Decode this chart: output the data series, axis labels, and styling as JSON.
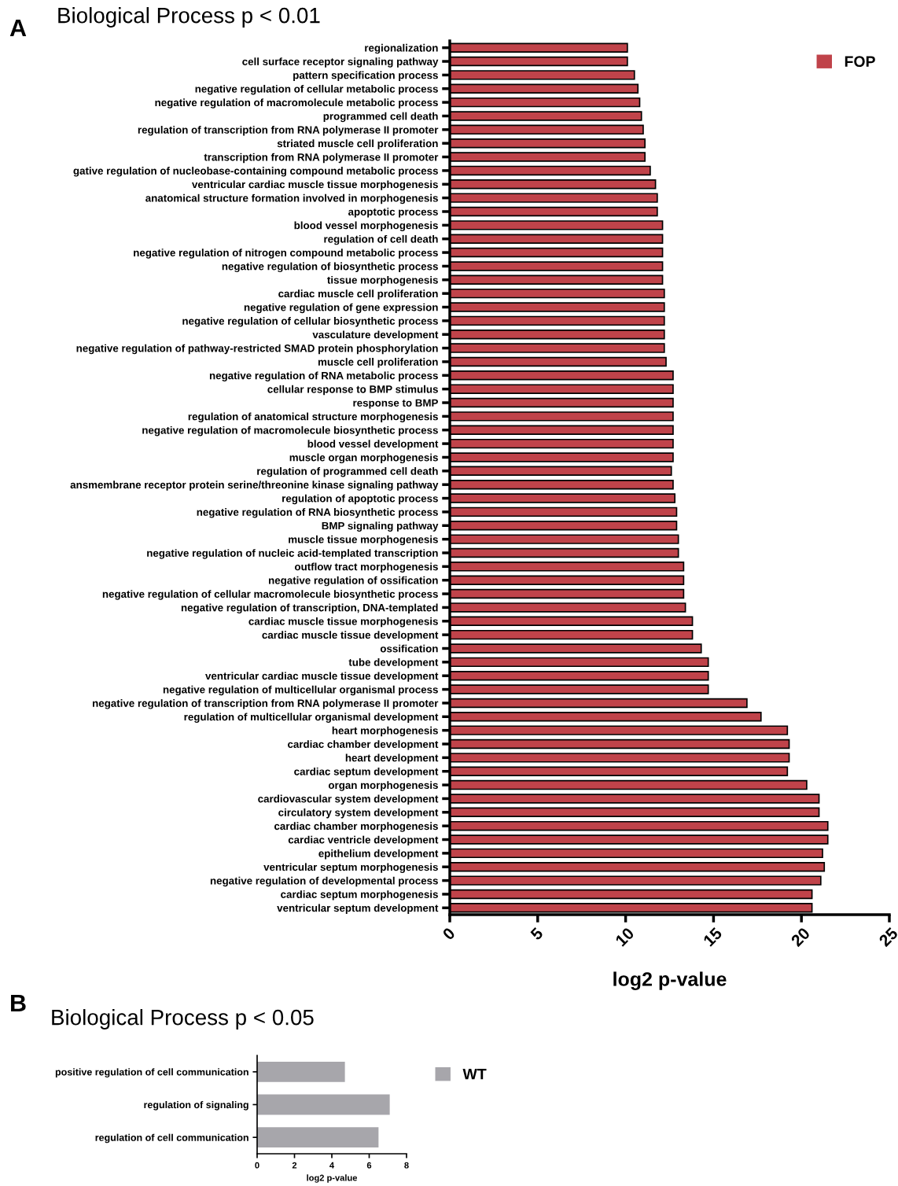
{
  "chart_data": [
    {
      "type": "bar",
      "orientation": "horizontal",
      "title": "Biological Process p < 0.01",
      "xlabel": "log2 p-value",
      "annotations": [
        "A"
      ],
      "legend": "top right",
      "grid": false,
      "categories": [
        "regionalization",
        "cell surface receptor signaling pathway",
        "pattern specification process",
        "negative regulation of cellular metabolic process",
        "negative regulation of macromolecule metabolic process",
        "programmed cell death",
        "regulation of transcription from RNA polymerase II promoter",
        "striated muscle cell proliferation",
        "transcription from RNA polymerase II promoter",
        "gative regulation of nucleobase-containing compound metabolic process",
        "ventricular cardiac muscle tissue morphogenesis",
        "anatomical structure formation involved in morphogenesis",
        "apoptotic process",
        "blood vessel morphogenesis",
        "regulation of cell death",
        "negative regulation of nitrogen compound metabolic process",
        "negative regulation of biosynthetic process",
        "tissue morphogenesis",
        "cardiac muscle cell proliferation",
        "negative regulation of gene expression",
        "negative regulation of cellular biosynthetic process",
        "vasculature development",
        "negative regulation of pathway-restricted SMAD protein phosphorylation",
        "muscle cell proliferation",
        "negative regulation of RNA metabolic process",
        "cellular response to BMP stimulus",
        "response to BMP",
        "regulation of anatomical structure morphogenesis",
        "negative regulation of macromolecule biosynthetic process",
        "blood vessel development",
        "muscle organ morphogenesis",
        "regulation of programmed cell death",
        "ansmembrane receptor protein serine/threonine kinase signaling pathway",
        "regulation of apoptotic process",
        "negative regulation of RNA biosynthetic process",
        "BMP signaling pathway",
        "muscle tissue morphogenesis",
        "negative regulation of nucleic acid-templated transcription",
        "outflow tract morphogenesis",
        "negative regulation of ossification",
        "negative regulation of cellular macromolecule biosynthetic process",
        "negative regulation of transcription, DNA-templated",
        "cardiac muscle tissue morphogenesis",
        "cardiac muscle tissue development",
        "ossification",
        "tube development",
        "ventricular cardiac muscle tissue development",
        "negative regulation of multicellular organismal process",
        "negative regulation of transcription from RNA polymerase II promoter",
        "regulation of multicellular organismal development",
        "heart morphogenesis",
        "cardiac chamber development",
        "heart development",
        "cardiac septum development",
        "organ morphogenesis",
        "cardiovascular system development",
        "circulatory system development",
        "cardiac chamber morphogenesis",
        "cardiac ventricle development",
        "epithelium development",
        "ventricular septum morphogenesis",
        "negative regulation of developmental process",
        "cardiac septum morphogenesis",
        "ventricular septum development"
      ],
      "series": [
        {
          "name": "FOP",
          "color": "#c0434a",
          "values": [
            10.1,
            10.1,
            10.5,
            10.7,
            10.8,
            10.9,
            11.0,
            11.1,
            11.1,
            11.4,
            11.7,
            11.8,
            11.8,
            12.1,
            12.1,
            12.1,
            12.1,
            12.1,
            12.2,
            12.2,
            12.2,
            12.2,
            12.2,
            12.3,
            12.7,
            12.7,
            12.7,
            12.7,
            12.7,
            12.7,
            12.7,
            12.6,
            12.7,
            12.8,
            12.9,
            12.9,
            13.0,
            13.0,
            13.3,
            13.3,
            13.3,
            13.4,
            13.8,
            13.8,
            14.3,
            14.7,
            14.7,
            14.7,
            16.9,
            17.7,
            19.2,
            19.3,
            19.3,
            19.2,
            20.3,
            21.0,
            21.0,
            21.5,
            21.5,
            21.2,
            21.3,
            21.1,
            20.6,
            20.6
          ]
        }
      ],
      "xlim": [
        0,
        25
      ],
      "xticks": [
        0,
        5,
        10,
        15,
        20,
        25
      ]
    },
    {
      "type": "bar",
      "orientation": "horizontal",
      "title": "Biological Process p < 0.05",
      "xlabel": "log2 p-value",
      "annotations": [
        "B"
      ],
      "legend": "right",
      "grid": false,
      "categories": [
        "positive regulation of cell communication",
        "regulation of signaling",
        "regulation of cell communication"
      ],
      "series": [
        {
          "name": "WT",
          "color": "#a7a6ab",
          "values": [
            4.7,
            7.1,
            6.5
          ]
        }
      ],
      "xlim": [
        0,
        8
      ],
      "xticks": [
        0,
        2,
        4,
        6,
        8
      ]
    }
  ]
}
